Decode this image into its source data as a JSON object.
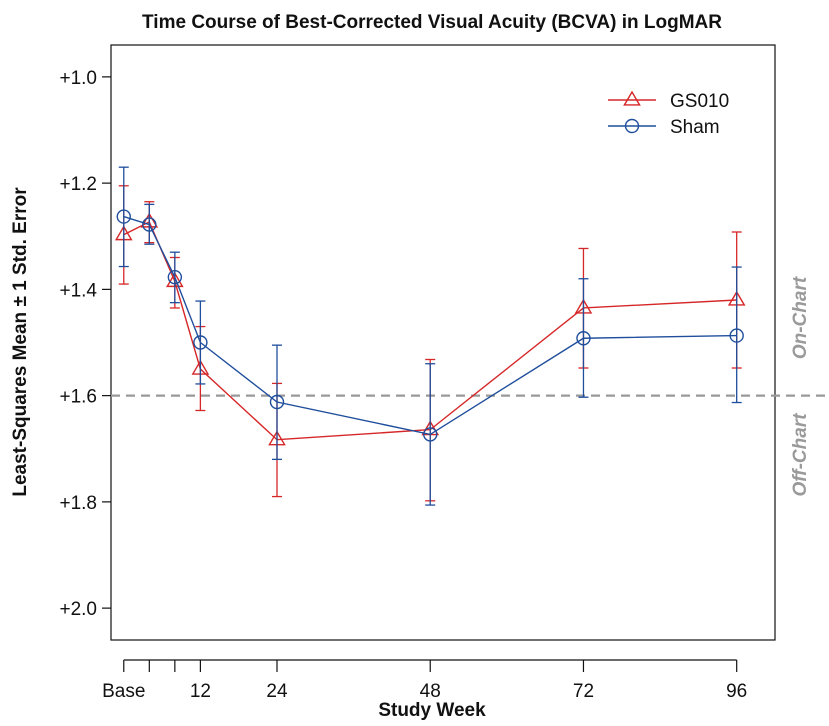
{
  "chart_data": {
    "type": "line",
    "title": "Time Course of Best-Corrected Visual Acuity (BCVA) in LogMAR",
    "xlabel": "Study Week",
    "ylabel": "Least-Squares Mean ± 1 Std. Error",
    "x_ticks": [
      {
        "value": 0,
        "label": "Base"
      },
      {
        "value": 4,
        "label": ""
      },
      {
        "value": 8,
        "label": ""
      },
      {
        "value": 12,
        "label": "12"
      },
      {
        "value": 24,
        "label": "24"
      },
      {
        "value": 48,
        "label": "48"
      },
      {
        "value": 72,
        "label": "72"
      },
      {
        "value": 96,
        "label": "96"
      }
    ],
    "y_ticks": [
      {
        "value": 1.0,
        "label": "+1.0"
      },
      {
        "value": 1.2,
        "label": "+1.2"
      },
      {
        "value": 1.4,
        "label": "+1.4"
      },
      {
        "value": 1.6,
        "label": "+1.6"
      },
      {
        "value": 1.8,
        "label": "+1.8"
      },
      {
        "value": 2.0,
        "label": "+2.0"
      }
    ],
    "xlim": [
      -2,
      102
    ],
    "ylim": [
      0.94,
      2.06
    ],
    "y_inverted": true,
    "grid": false,
    "legend_position": "top-right",
    "reference_line": {
      "y": 1.6,
      "style": "dashed",
      "color": "#999999",
      "label_above": "On-Chart",
      "label_below": "Off-Chart"
    },
    "series": [
      {
        "name": "GS010",
        "color": "#d62728",
        "marker": "triangle",
        "points": [
          {
            "x": 0,
            "y": 1.297,
            "lo": 1.205,
            "hi": 1.39
          },
          {
            "x": 4,
            "y": 1.273,
            "lo": 1.235,
            "hi": 1.312
          },
          {
            "x": 8,
            "y": 1.385,
            "lo": 1.34,
            "hi": 1.435
          },
          {
            "x": 12,
            "y": 1.55,
            "lo": 1.47,
            "hi": 1.628
          },
          {
            "x": 24,
            "y": 1.683,
            "lo": 1.577,
            "hi": 1.79
          },
          {
            "x": 48,
            "y": 1.664,
            "lo": 1.532,
            "hi": 1.798
          },
          {
            "x": 72,
            "y": 1.435,
            "lo": 1.323,
            "hi": 1.548
          },
          {
            "x": 96,
            "y": 1.42,
            "lo": 1.292,
            "hi": 1.548
          }
        ]
      },
      {
        "name": "Sham",
        "color": "#1f4e9c",
        "marker": "circle",
        "points": [
          {
            "x": 0,
            "y": 1.263,
            "lo": 1.17,
            "hi": 1.357
          },
          {
            "x": 4,
            "y": 1.278,
            "lo": 1.24,
            "hi": 1.315
          },
          {
            "x": 8,
            "y": 1.377,
            "lo": 1.33,
            "hi": 1.425
          },
          {
            "x": 12,
            "y": 1.5,
            "lo": 1.422,
            "hi": 1.578
          },
          {
            "x": 24,
            "y": 1.612,
            "lo": 1.505,
            "hi": 1.72
          },
          {
            "x": 48,
            "y": 1.673,
            "lo": 1.54,
            "hi": 1.806
          },
          {
            "x": 72,
            "y": 1.492,
            "lo": 1.38,
            "hi": 1.603
          },
          {
            "x": 96,
            "y": 1.487,
            "lo": 1.358,
            "hi": 1.613
          }
        ]
      }
    ]
  }
}
